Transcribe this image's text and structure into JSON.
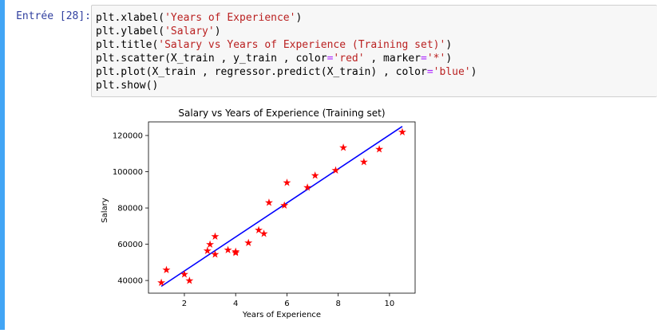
{
  "prompt": "Entrée [28]:",
  "code_lines": [
    [
      {
        "t": "plt.xlabel("
      },
      {
        "t": "'Years of Experience'",
        "c": "str"
      },
      {
        "t": ")"
      }
    ],
    [
      {
        "t": "plt.ylabel("
      },
      {
        "t": "'Salary'",
        "c": "str"
      },
      {
        "t": ")"
      }
    ],
    [
      {
        "t": "plt.title("
      },
      {
        "t": "'Salary vs Years of Experience (Training set)'",
        "c": "str"
      },
      {
        "t": ")"
      }
    ],
    [
      {
        "t": "plt.scatter(X_train , y_train , color"
      },
      {
        "t": "=",
        "c": "op"
      },
      {
        "t": "'red'",
        "c": "str"
      },
      {
        "t": " , marker"
      },
      {
        "t": "=",
        "c": "op"
      },
      {
        "t": "'*'",
        "c": "str"
      },
      {
        "t": ")"
      }
    ],
    [
      {
        "t": "plt.plot(X_train , regressor.predict(X_train) , color"
      },
      {
        "t": "=",
        "c": "op"
      },
      {
        "t": "'blue'",
        "c": "str"
      },
      {
        "t": ")"
      }
    ],
    [
      {
        "t": "plt.show()"
      }
    ]
  ],
  "colors": {
    "cell_bar": "#42a5f5",
    "prompt": "#303f9f",
    "string": "#ba2121",
    "operator": "#aa22ff",
    "points": "#ff0000",
    "line": "#0000ff"
  },
  "chart_data": {
    "type": "scatter",
    "title": "Salary vs Years of Experience (Training set)",
    "xlabel": "Years of Experience",
    "ylabel": "Salary",
    "xlim": [
      0.6,
      11.0
    ],
    "ylim": [
      33000,
      127500
    ],
    "xticks": [
      2,
      4,
      6,
      8,
      10
    ],
    "yticks": [
      40000,
      60000,
      80000,
      100000,
      120000
    ],
    "grid": false,
    "points": {
      "marker": "*",
      "color": "red",
      "x": [
        1.1,
        1.3,
        2.0,
        2.2,
        2.9,
        3.0,
        3.2,
        3.2,
        3.7,
        4.0,
        4.0,
        4.5,
        4.9,
        5.1,
        5.3,
        5.9,
        6.0,
        6.8,
        7.1,
        7.9,
        8.2,
        9.0,
        9.6,
        10.5
      ],
      "y": [
        39000,
        46000,
        43500,
        40000,
        56500,
        60000,
        54500,
        64500,
        57000,
        56000,
        55500,
        61000,
        68000,
        66000,
        83000,
        81500,
        94000,
        91500,
        98000,
        101000,
        113500,
        105500,
        112500,
        122000
      ]
    },
    "line": {
      "color": "blue",
      "x": [
        1.1,
        10.5
      ],
      "y": [
        36800,
        125000
      ]
    }
  }
}
